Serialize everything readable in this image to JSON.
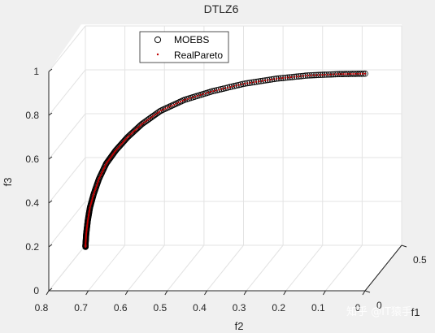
{
  "chart_data": {
    "type": "scatter",
    "title": "DTLZ6",
    "xlabel": "f1",
    "ylabel": "f2",
    "zlabel": "f3",
    "xlim": [
      0,
      0.5
    ],
    "ylim": [
      0,
      0.8
    ],
    "zlim": [
      0,
      1
    ],
    "xticks": [
      "0",
      "0.5"
    ],
    "yticks": [
      "0.8",
      "0.7",
      "0.6",
      "0.5",
      "0.4",
      "0.3",
      "0.2",
      "0.1",
      "0"
    ],
    "zticks": [
      "0",
      "0.2",
      "0.4",
      "0.6",
      "0.8",
      "1"
    ],
    "grid": true,
    "legend_position": "top-left",
    "series": [
      {
        "name": "MOEBS",
        "marker": "open-circle",
        "color": "#000000",
        "points": [
          [
            0.0,
            0.7071,
            0.2
          ],
          [
            0.0,
            0.7071,
            0.21
          ],
          [
            0.0,
            0.7053,
            0.26
          ],
          [
            0.0,
            0.7014,
            0.32
          ],
          [
            0.0,
            0.6958,
            0.38
          ],
          [
            0.0,
            0.6866,
            0.44
          ],
          [
            0.0,
            0.6731,
            0.51
          ],
          [
            0.0,
            0.6547,
            0.58
          ],
          [
            0.0,
            0.6306,
            0.64
          ],
          [
            0.0,
            0.6009,
            0.7
          ],
          [
            0.0,
            0.5647,
            0.76
          ],
          [
            0.0,
            0.5178,
            0.82
          ],
          [
            0.0,
            0.4576,
            0.87
          ],
          [
            0.0,
            0.3857,
            0.91
          ],
          [
            0.0,
            0.3065,
            0.944
          ],
          [
            0.0,
            0.2251,
            0.967
          ],
          [
            0.0,
            0.1441,
            0.982
          ],
          [
            0.0,
            0.0668,
            0.988
          ],
          [
            0.0,
            0.0,
            0.99
          ]
        ]
      },
      {
        "name": "RealPareto",
        "marker": "dot",
        "color": "#c00000",
        "points_source": "same curve"
      }
    ]
  },
  "watermark": "知乎 @IT猿手"
}
